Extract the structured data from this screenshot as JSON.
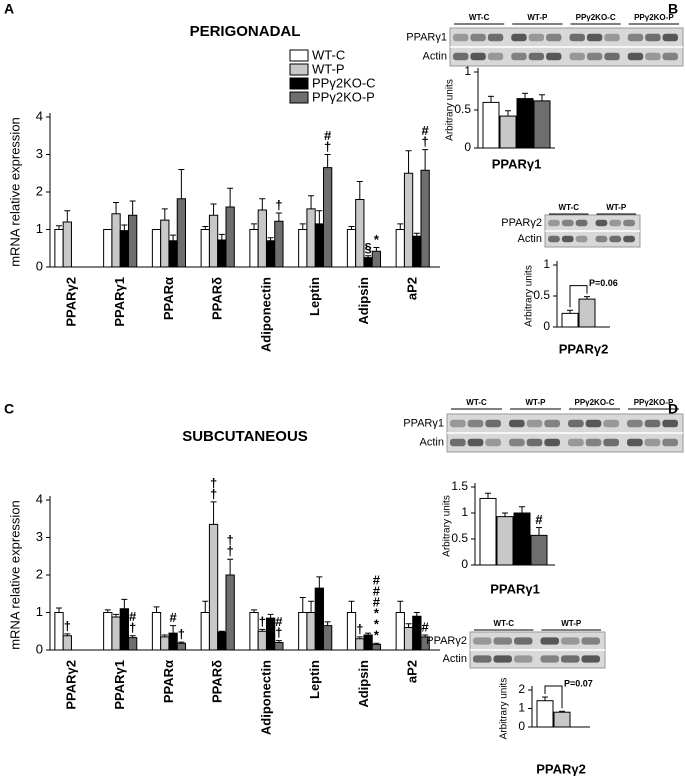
{
  "chart_data": [
    {
      "type": "grouped-bar",
      "panel_label": "A",
      "title": "PERIGONADAL",
      "ylabel": "mRNA relative expression",
      "categories": [
        "PPARγ2",
        "PPARγ1",
        "PPARα",
        "PPARδ",
        "Adiponectin",
        "Leptin",
        "Adipsin",
        "aP2"
      ],
      "ylim": [
        0,
        4
      ],
      "yticks": [
        0,
        1,
        2,
        3,
        4
      ],
      "legend": true,
      "series": [
        {
          "name": "WT-C",
          "color": "#ffffff",
          "values": [
            1,
            1,
            1,
            1,
            1,
            1,
            1,
            1
          ],
          "errors": [
            0.1,
            0,
            0,
            0.08,
            0.15,
            0.15,
            0.08,
            0.15
          ]
        },
        {
          "name": "WT-P",
          "color": "#c8c8c8",
          "values": [
            1.2,
            1.42,
            1.25,
            1.38,
            1.52,
            1.55,
            1.8,
            2.5
          ],
          "errors": [
            0.3,
            0.3,
            0.3,
            0.3,
            0.3,
            0.35,
            0.48,
            0.6
          ]
        },
        {
          "name": "PPγ2KO-C",
          "color": "#000000",
          "values": [
            null,
            0.97,
            0.7,
            0.72,
            0.7,
            1.15,
            0.25,
            0.82
          ],
          "errors": [
            null,
            0.15,
            0.15,
            0.15,
            0.08,
            0.35,
            0.05,
            0.08
          ]
        },
        {
          "name": "PPγ2KO-P",
          "color": "#6e6e6e",
          "values": [
            null,
            1.38,
            1.82,
            1.6,
            1.22,
            2.65,
            0.42,
            2.58
          ],
          "errors": [
            null,
            0.38,
            0.78,
            0.5,
            0.22,
            0.35,
            0.1,
            0.55
          ]
        }
      ],
      "annotations": [
        {
          "category": 4,
          "series": 3,
          "symbols": [
            "†"
          ]
        },
        {
          "category": 5,
          "series": 3,
          "symbols": [
            "#",
            "†"
          ]
        },
        {
          "category": 6,
          "series": 2,
          "symbols": [
            "§"
          ]
        },
        {
          "category": 6,
          "series": 3,
          "symbols": [
            "*"
          ]
        },
        {
          "category": 7,
          "series": 3,
          "symbols": [
            "#",
            "†"
          ]
        }
      ]
    },
    {
      "type": "blot-bar",
      "panel_label": "B",
      "title": "PPARγ1",
      "ylabel": "Arbitrary units",
      "blot": {
        "lanes": [
          "WT-C",
          "WT-P",
          "PPγ2KO-C",
          "PPγ2KO-P"
        ],
        "rows": [
          "PPARγ1",
          "Actin"
        ]
      },
      "ylim": [
        0,
        1
      ],
      "yticks": [
        0,
        0.5,
        1
      ],
      "values": [
        0.6,
        0.42,
        0.65,
        0.62
      ],
      "errors": [
        0.08,
        0.07,
        0.07,
        0.08
      ],
      "colors": [
        "#ffffff",
        "#c8c8c8",
        "#000000",
        "#6e6e6e"
      ]
    },
    {
      "type": "blot-bar",
      "title": "PPARγ2",
      "ylabel": "Arbitrary units",
      "blot": {
        "lanes": [
          "WT-C",
          "WT-P"
        ],
        "rows": [
          "PPARγ2",
          "Actin"
        ]
      },
      "ylim": [
        0,
        1
      ],
      "yticks": [
        0,
        0.5,
        1
      ],
      "values": [
        0.22,
        0.45
      ],
      "errors": [
        0.05,
        0.04
      ],
      "colors": [
        "#ffffff",
        "#c8c8c8"
      ],
      "comparison": {
        "text": "P=0.06",
        "bars": [
          0,
          1
        ]
      }
    },
    {
      "type": "grouped-bar",
      "panel_label": "C",
      "title": "SUBCUTANEOUS",
      "ylabel": "mRNA relative expression",
      "categories": [
        "PPARγ2",
        "PPARγ1",
        "PPARα",
        "PPARδ",
        "Adiponectin",
        "Leptin",
        "Adipsin",
        "aP2"
      ],
      "ylim": [
        0,
        4
      ],
      "yticks": [
        0,
        1,
        2,
        3,
        4
      ],
      "legend": false,
      "series": [
        {
          "name": "WT-C",
          "color": "#ffffff",
          "values": [
            1,
            1,
            1,
            1,
            1,
            1,
            1,
            1
          ],
          "errors": [
            0.12,
            0.07,
            0.15,
            0.3,
            0.07,
            0.4,
            0.3,
            0.3
          ]
        },
        {
          "name": "WT-P",
          "color": "#c8c8c8",
          "values": [
            0.38,
            0.88,
            0.35,
            3.35,
            0.5,
            1.0,
            0.3,
            0.6
          ],
          "errors": [
            0.05,
            0.07,
            0.05,
            0.6,
            0.05,
            0.3,
            0.05,
            0.1
          ]
        },
        {
          "name": "PPγ2KO-C",
          "color": "#000000",
          "values": [
            null,
            1.1,
            0.45,
            0.48,
            0.85,
            1.65,
            0.4,
            0.9
          ],
          "errors": [
            null,
            0.25,
            0.2,
            0.02,
            0.1,
            0.3,
            0.05,
            0.1
          ]
        },
        {
          "name": "PPγ2KO-P",
          "color": "#6e6e6e",
          "values": [
            null,
            0.33,
            0.18,
            2.0,
            0.2,
            0.65,
            0.15,
            0.35
          ],
          "errors": [
            null,
            0.05,
            0.03,
            0.42,
            0.05,
            0.1,
            0.03,
            0.05
          ]
        }
      ],
      "annotations": [
        {
          "category": 0,
          "series": 1,
          "symbols": [
            "†"
          ]
        },
        {
          "category": 1,
          "series": 3,
          "symbols": [
            "#",
            "†"
          ]
        },
        {
          "category": 2,
          "series": 2,
          "symbols": [
            "#"
          ]
        },
        {
          "category": 2,
          "series": 3,
          "symbols": [
            "†"
          ]
        },
        {
          "category": 3,
          "series": 1,
          "symbols": [
            "†",
            "†"
          ]
        },
        {
          "category": 3,
          "series": 3,
          "symbols": [
            "†",
            "†"
          ]
        },
        {
          "category": 4,
          "series": 1,
          "symbols": [
            "†"
          ]
        },
        {
          "category": 4,
          "series": 3,
          "symbols": [
            "#",
            "†"
          ]
        },
        {
          "category": 6,
          "series": 1,
          "symbols": [
            "†"
          ]
        },
        {
          "category": 6,
          "series": 3,
          "symbols": [
            "#",
            "#",
            "#",
            "*",
            "*",
            "*"
          ]
        },
        {
          "category": 7,
          "series": 3,
          "symbols": [
            "#"
          ]
        }
      ]
    },
    {
      "type": "blot-bar",
      "panel_label": "D",
      "title": "PPARγ1",
      "ylabel": "Arbitrary units",
      "blot": {
        "lanes": [
          "WT-C",
          "WT-P",
          "PPγ2KO-C",
          "PPγ2KO-P"
        ],
        "rows": [
          "PPARγ1",
          "Actin"
        ]
      },
      "ylim": [
        0,
        1.5
      ],
      "yticks": [
        0,
        0.5,
        1,
        1.5
      ],
      "values": [
        1.28,
        0.93,
        1.0,
        0.57
      ],
      "errors": [
        0.1,
        0.07,
        0.12,
        0.15
      ],
      "colors": [
        "#ffffff",
        "#c8c8c8",
        "#000000",
        "#6e6e6e"
      ],
      "annotations": [
        {
          "bar": 3,
          "symbols": [
            "#"
          ]
        }
      ]
    },
    {
      "type": "blot-bar",
      "title": "PPARγ2",
      "ylabel": "Arbitrary units",
      "blot": {
        "lanes": [
          "WT-C",
          "WT-P"
        ],
        "rows": [
          "PPARγ2",
          "Actin"
        ]
      },
      "ylim": [
        0,
        2
      ],
      "yticks": [
        0,
        1,
        2
      ],
      "values": [
        1.42,
        0.8
      ],
      "errors": [
        0.2,
        0.05
      ],
      "colors": [
        "#ffffff",
        "#c8c8c8"
      ],
      "comparison": {
        "text": "P=0.07",
        "bars": [
          0,
          1
        ]
      }
    }
  ]
}
